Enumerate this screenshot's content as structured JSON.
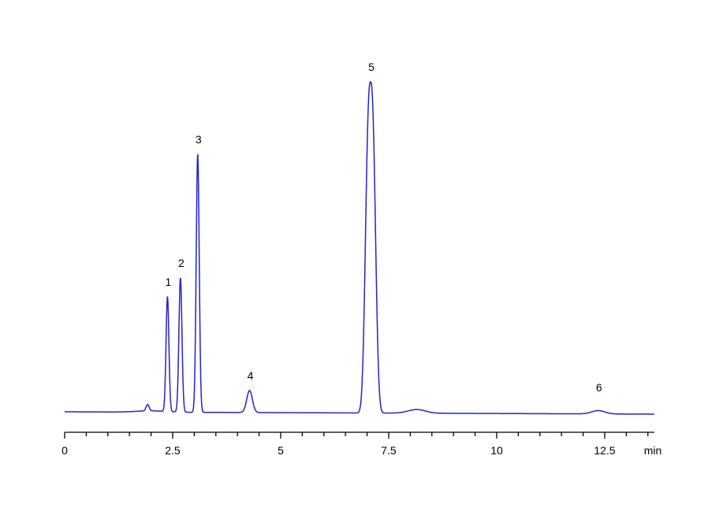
{
  "chart_data": {
    "type": "line",
    "title": "",
    "xlabel": "",
    "ylabel": "",
    "x_unit": "min",
    "xlim": [
      0,
      13.65
    ],
    "ylim": [
      0,
      100
    ],
    "x_ticks": [
      "0",
      "2.5",
      "5",
      "7.5",
      "10",
      "12.5"
    ],
    "x_tick_values": [
      0,
      2.5,
      5,
      7.5,
      10,
      12.5
    ],
    "grid": false,
    "legend": "none",
    "line_color": "#2222cc",
    "baseline": 0,
    "baseline_drift": -0.7,
    "peaks": [
      {
        "label": "",
        "rt": 1.92,
        "height": 1.9,
        "width": 0.035
      },
      {
        "label": "1",
        "rt": 2.38,
        "height": 34.4,
        "width": 0.033
      },
      {
        "label": "2",
        "rt": 2.68,
        "height": 40.2,
        "width": 0.035
      },
      {
        "label": "3",
        "rt": 3.08,
        "height": 77.3,
        "width": 0.035
      },
      {
        "label": "4",
        "rt": 4.28,
        "height": 6.6,
        "width": 0.065
      },
      {
        "label": "5",
        "rt": 7.08,
        "height": 99.2,
        "width": 0.14
      },
      {
        "label": "",
        "rt": 8.15,
        "height": 1.1,
        "width": 0.2
      },
      {
        "label": "6",
        "rt": 12.35,
        "height": 1.0,
        "width": 0.15
      }
    ]
  }
}
